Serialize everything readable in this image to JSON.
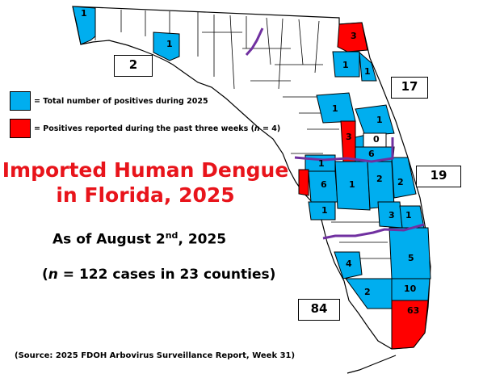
{
  "title_line1": "Imported Human Dengue",
  "title_line2": "in Florida, 2025",
  "as_of_prefix": "As of August 2",
  "as_of_sup": "nd",
  "as_of_suffix": ", 2025",
  "cases_open": "(",
  "cases_n": "n",
  "cases_rest": " = 122 cases in 23 counties)",
  "source": "(Source: 2025 FDOH Arbovirus Surveillance Report, Week 31)",
  "legend": {
    "total_color": "#00aeef",
    "total_label": "= Total number of positives during 2025",
    "recent_color": "#ff0000",
    "recent_label_prefix": "= Positives reported during the past three weeks (",
    "recent_label_n": "n",
    "recent_label_suffix": " = 4)"
  },
  "colors": {
    "blue": "#00aeef",
    "red": "#ff0000",
    "region_line": "#7030a0"
  },
  "regions": [
    {
      "id": "northwest",
      "total": "2"
    },
    {
      "id": "northeast",
      "total": "17"
    },
    {
      "id": "central",
      "total": "19"
    },
    {
      "id": "southern",
      "total": "84"
    }
  ],
  "county_counts": [
    "1",
    "1",
    "3",
    "1",
    "1",
    "1",
    "1",
    "3",
    "0",
    "6",
    "1",
    "6",
    "1",
    "2",
    "2",
    "1",
    "3",
    "1",
    "5",
    "4",
    "2",
    "10",
    "63"
  ]
}
